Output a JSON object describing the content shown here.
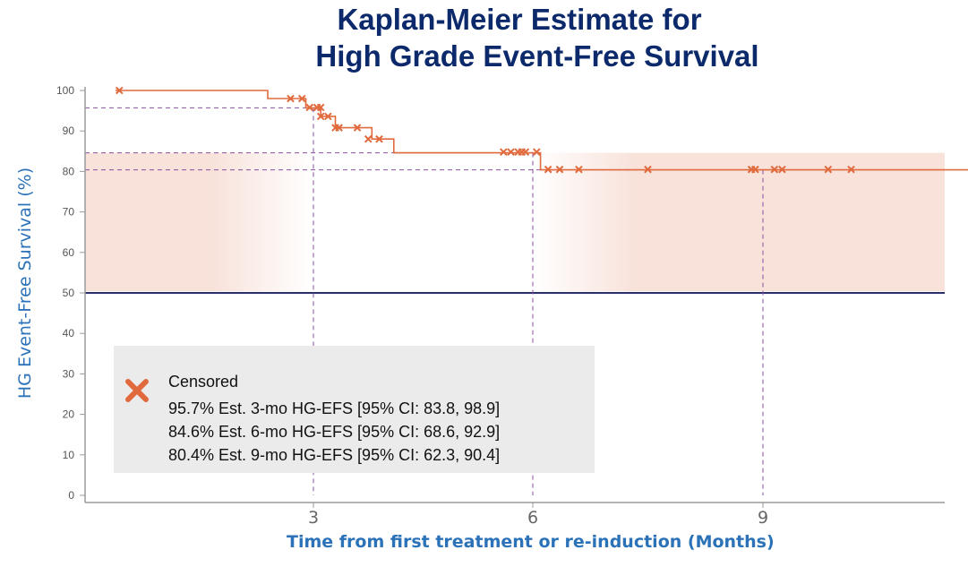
{
  "title_line1": "Kaplan-Meier Estimate for",
  "title_line2": "High Grade Event-Free Survival",
  "colors": {
    "title": "#0c2a6b",
    "axis_label": "#2b72b8",
    "curve": "#e06a3d",
    "ci_band": "#f8e2da",
    "reference": "#2a2f6b",
    "guide": "#8a4fa3"
  },
  "legend": {
    "censored": "Censored",
    "est_3mo": "95.7% Est. 3-mo HG-EFS [95% CI: 83.8, 98.9]",
    "est_6mo": "84.6% Est. 6-mo HG-EFS [95% CI: 68.6, 92.9]",
    "est_9mo": "80.4% Est. 9-mo HG-EFS [95% CI: 62.3, 90.4]"
  },
  "chart_data": {
    "type": "line",
    "xlabel": "Time from first treatment or re-induction (Months)",
    "ylabel": "HG Event-Free Survival (%)",
    "xlim": [
      0,
      12.5
    ],
    "ylim": [
      0,
      100
    ],
    "x_ticks": [
      3,
      6,
      9
    ],
    "y_ticks": [
      0,
      10,
      20,
      30,
      40,
      50,
      60,
      70,
      80,
      90,
      100
    ],
    "grid": false,
    "legend_position": "bottom-left",
    "reference_line_y": 50,
    "step_curve": [
      [
        0.4,
        100
      ],
      [
        2.4,
        100
      ],
      [
        2.4,
        98.0
      ],
      [
        2.9,
        98.0
      ],
      [
        2.9,
        95.7
      ],
      [
        3.1,
        95.7
      ],
      [
        3.1,
        93.6
      ],
      [
        3.3,
        93.6
      ],
      [
        3.3,
        90.8
      ],
      [
        3.8,
        90.8
      ],
      [
        3.8,
        88.0
      ],
      [
        4.1,
        88.0
      ],
      [
        4.1,
        84.6
      ],
      [
        6.1,
        84.6
      ],
      [
        6.1,
        80.4
      ],
      [
        12.5,
        80.4
      ]
    ],
    "censored_points": [
      [
        0.45,
        100
      ],
      [
        2.7,
        98.0
      ],
      [
        2.85,
        98.0
      ],
      [
        2.95,
        95.8
      ],
      [
        3.05,
        95.8
      ],
      [
        3.1,
        95.8
      ],
      [
        3.1,
        93.6
      ],
      [
        3.2,
        93.6
      ],
      [
        3.3,
        90.8
      ],
      [
        3.35,
        90.8
      ],
      [
        3.6,
        90.8
      ],
      [
        3.75,
        88.0
      ],
      [
        3.9,
        88.0
      ],
      [
        5.6,
        84.8
      ],
      [
        5.7,
        84.8
      ],
      [
        5.8,
        84.8
      ],
      [
        5.85,
        84.8
      ],
      [
        5.9,
        84.8
      ],
      [
        6.05,
        84.8
      ],
      [
        6.2,
        80.5
      ],
      [
        6.35,
        80.5
      ],
      [
        6.6,
        80.5
      ],
      [
        7.5,
        80.5
      ],
      [
        8.85,
        80.5
      ],
      [
        8.9,
        80.5
      ],
      [
        9.15,
        80.5
      ],
      [
        9.25,
        80.5
      ],
      [
        9.85,
        80.5
      ],
      [
        10.15,
        80.5
      ]
    ],
    "estimates": [
      {
        "x": 3,
        "y": 95.7,
        "ci": [
          83.8,
          98.9
        ]
      },
      {
        "x": 6,
        "y": 84.6,
        "ci": [
          68.6,
          92.9
        ]
      },
      {
        "x": 9,
        "y": 80.4,
        "ci": [
          62.3,
          90.4
        ]
      }
    ],
    "ci_band": {
      "y_range": [
        50.4,
        84.6
      ],
      "highlight_x_ranges": [
        [
          0,
          3
        ],
        [
          6,
          12.5
        ]
      ]
    }
  }
}
